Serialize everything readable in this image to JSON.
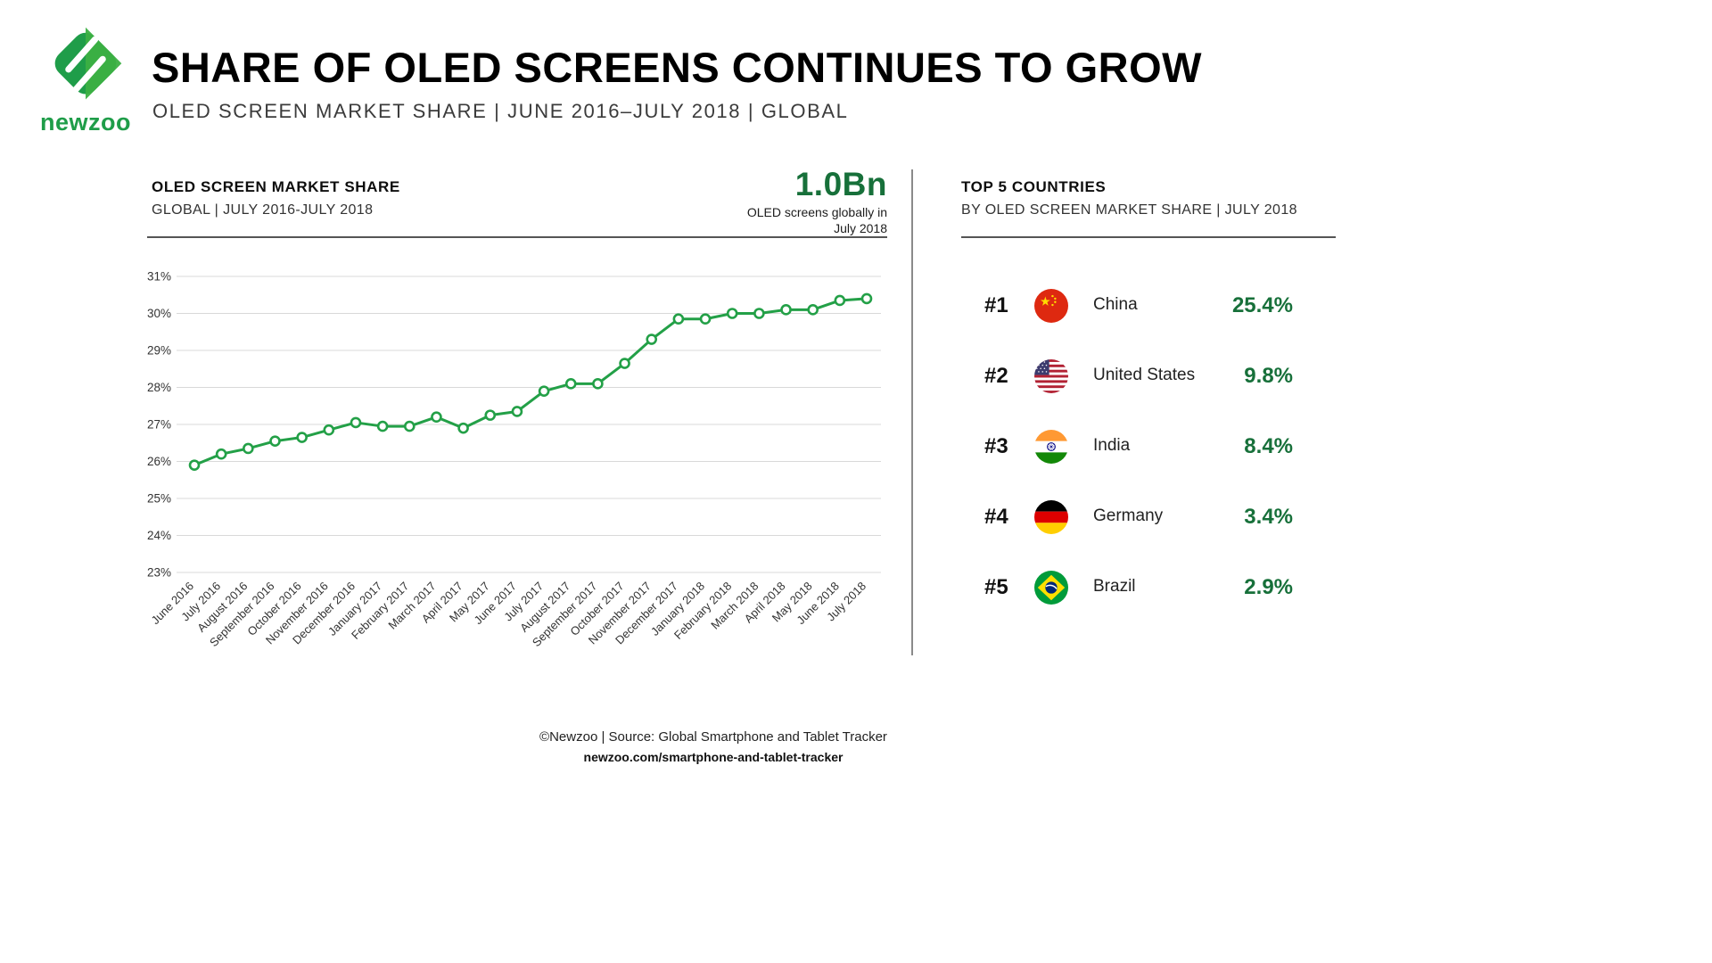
{
  "brand": {
    "logo_text": "newzoo",
    "accent_green": "#23a047",
    "dark_green": "#17703a"
  },
  "header": {
    "title": "SHARE OF OLED SCREENS CONTINUES TO GROW",
    "subtitle": "OLED SCREEN MARKET SHARE | JUNE 2016–JULY 2018 | GLOBAL"
  },
  "chart_section": {
    "title": "OLED SCREEN MARKET SHARE",
    "subtitle": "GLOBAL | JULY 2016-JULY 2018",
    "highlight_value": "1.0Bn",
    "highlight_label": "OLED screens globally in July 2018"
  },
  "chart_data": {
    "type": "line",
    "title": "OLED SCREEN MARKET SHARE",
    "subtitle": "GLOBAL | JULY 2016-JULY 2018",
    "x": [
      "June 2016",
      "July 2016",
      "August 2016",
      "September 2016",
      "October 2016",
      "November 2016",
      "December 2016",
      "January 2017",
      "February 2017",
      "March 2017",
      "April 2017",
      "May 2017",
      "June 2017",
      "July 2017",
      "August 2017",
      "September 2017",
      "October 2017",
      "November 2017",
      "December 2017",
      "January 2018",
      "February 2018",
      "March 2018",
      "April 2018",
      "May 2018",
      "June 2018",
      "July 2018"
    ],
    "series": [
      {
        "name": "OLED screen market share (%)",
        "values": [
          25.9,
          26.2,
          26.35,
          26.55,
          26.65,
          26.85,
          27.05,
          26.95,
          26.95,
          27.2,
          26.9,
          27.25,
          27.35,
          27.9,
          28.1,
          28.1,
          28.65,
          29.3,
          29.85,
          29.85,
          30.0,
          30.0,
          30.1,
          30.1,
          30.35,
          30.4
        ]
      }
    ],
    "ylim": [
      23,
      31
    ],
    "yticks": [
      23,
      24,
      25,
      26,
      27,
      28,
      29,
      30,
      31
    ],
    "ytick_suffix": "%",
    "grid": true,
    "legend": "none",
    "line_color": "#23a047",
    "marker": "open-circle"
  },
  "top5": {
    "title": "TOP 5 COUNTRIES",
    "subtitle": "BY OLED SCREEN MARKET SHARE | JULY 2018",
    "rows": [
      {
        "rank": "#1",
        "country": "China",
        "share": "25.4%",
        "flag_icon": "china-flag-icon"
      },
      {
        "rank": "#2",
        "country": "United States",
        "share": "9.8%",
        "flag_icon": "us-flag-icon"
      },
      {
        "rank": "#3",
        "country": "India",
        "share": "8.4%",
        "flag_icon": "india-flag-icon"
      },
      {
        "rank": "#4",
        "country": "Germany",
        "share": "3.4%",
        "flag_icon": "germany-flag-icon"
      },
      {
        "rank": "#5",
        "country": "Brazil",
        "share": "2.9%",
        "flag_icon": "brazil-flag-icon"
      }
    ]
  },
  "footer": {
    "source": "©Newzoo | Source: Global Smartphone and Tablet Tracker",
    "link": "newzoo.com/smartphone-and-tablet-tracker"
  }
}
